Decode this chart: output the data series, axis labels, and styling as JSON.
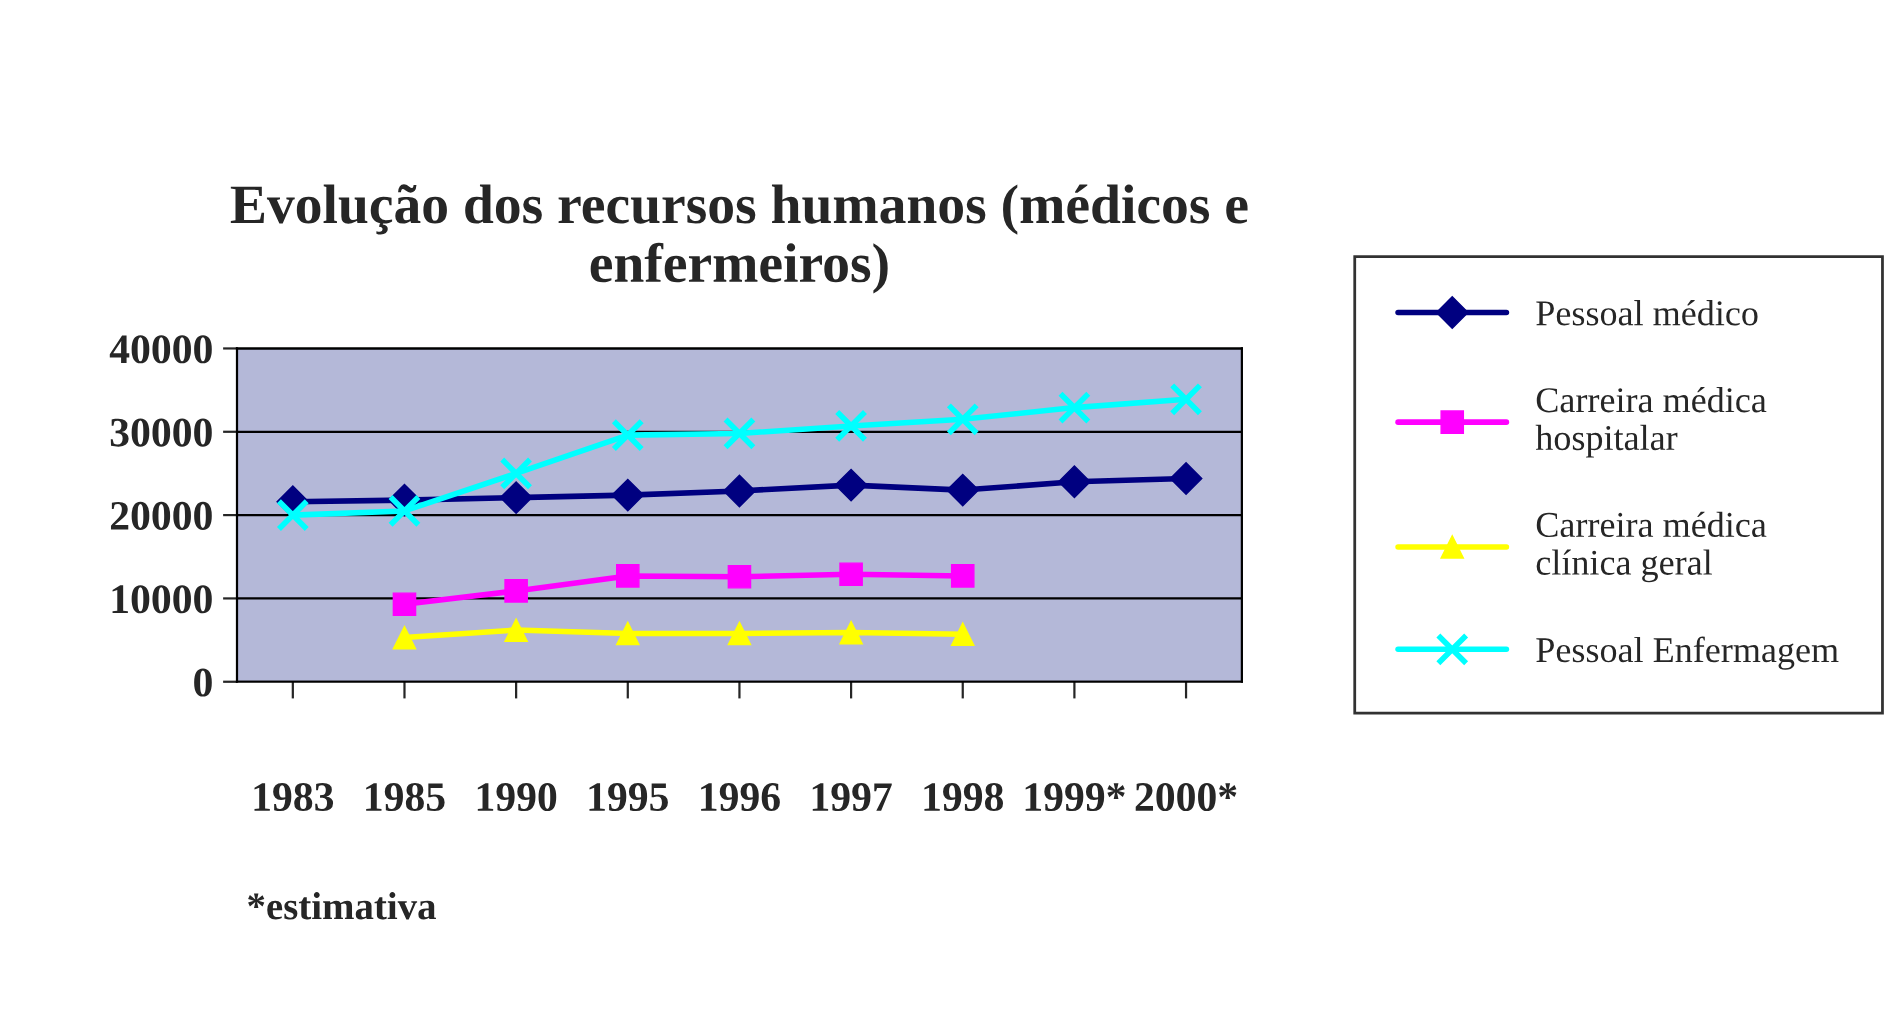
{
  "chart_data": {
    "type": "line",
    "title": "Evolução dos recursos humanos (médicos e\nenfermeiros)",
    "categories": [
      "1983",
      "1985",
      "1990",
      "1995",
      "1996",
      "1997",
      "1998",
      "1999*",
      "2000*"
    ],
    "series": [
      {
        "name": "Pessoal médico",
        "color": "#000080",
        "marker": "diamond",
        "values": [
          21600,
          21800,
          22100,
          22400,
          22900,
          23600,
          23000,
          24000,
          24400
        ]
      },
      {
        "name": "Carreira médica\nhospitalar",
        "color": "#ff00ff",
        "marker": "square",
        "values": [
          null,
          9300,
          10900,
          12700,
          12600,
          12900,
          12700,
          null,
          null
        ]
      },
      {
        "name": "Carreira médica\nclínica geral",
        "color": "#ffff00",
        "marker": "triangle",
        "values": [
          null,
          5300,
          6200,
          5800,
          5800,
          5900,
          5700,
          null,
          null
        ]
      },
      {
        "name": "Pessoal Enfermagem",
        "color": "#00ffff",
        "marker": "cross",
        "values": [
          20000,
          20500,
          25000,
          29600,
          29800,
          30700,
          31500,
          32900,
          33900
        ]
      }
    ],
    "ylim": [
      0,
      40000
    ],
    "yticks": [
      0,
      10000,
      20000,
      30000,
      40000
    ],
    "grid": "y",
    "legend": "right",
    "line_style": "solid",
    "annotations": [
      "*estimativa"
    ]
  }
}
